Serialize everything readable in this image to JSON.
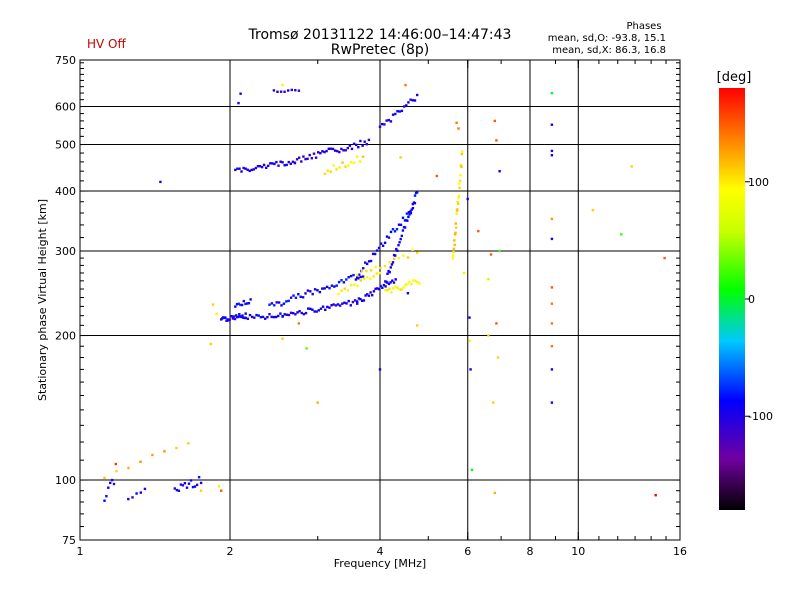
{
  "header": {
    "title": "Tromsø 20131122 14:46:00–14:47:43",
    "subtitle": "RwPretec (8p)",
    "status": "HV Off",
    "status_color": "#cc0000",
    "stats_title": "Phases",
    "stats_line1": "mean, sd,O: -93.8, 15.1",
    "stats_line2": "mean, sd,X: 86.3, 16.8"
  },
  "colorbar": {
    "label": "[deg]",
    "range": [
      -180,
      180
    ],
    "ticks": [
      "100",
      "0",
      "-100"
    ],
    "tick_values": [
      100,
      0,
      -100
    ]
  },
  "chart_data": {
    "type": "scatter",
    "xlabel": "Frequency [MHz]",
    "ylabel": "Stationary phase Virtual Height [km]",
    "xscale": "log",
    "yscale": "log",
    "xlim": [
      1,
      16
    ],
    "ylim": [
      75,
      750
    ],
    "xticks": [
      "1",
      "2",
      "4",
      "6",
      "8",
      "10",
      "16"
    ],
    "xtick_values": [
      1,
      2,
      4,
      6,
      8,
      10,
      16
    ],
    "yticks": [
      "750",
      "600",
      "500",
      "400",
      "300",
      "200",
      "100",
      "75"
    ],
    "ytick_values": [
      750,
      600,
      500,
      400,
      300,
      200,
      100,
      75
    ],
    "x_gridlines": [
      2,
      4,
      6,
      8,
      10
    ],
    "y_gridlines": [
      600,
      500,
      400,
      300,
      200,
      100
    ],
    "grid": true,
    "color_encoding": "phase in degrees",
    "traces": [
      {
        "x0": 1.92,
        "x1": 2.15,
        "y0": 216,
        "y1": 220,
        "n": 24,
        "phase": -95,
        "jitter": 0.012
      },
      {
        "x0": 2.15,
        "x1": 2.55,
        "y0": 218,
        "y1": 220,
        "n": 18,
        "phase": -92,
        "jitter": 0.012
      },
      {
        "x0": 2.55,
        "x1": 3.6,
        "y0": 220,
        "y1": 235,
        "n": 36,
        "phase": -98,
        "jitter": 0.012
      },
      {
        "x0": 3.6,
        "x1": 4.3,
        "y0": 235,
        "y1": 262,
        "n": 24,
        "phase": -95,
        "jitter": 0.012
      },
      {
        "x0": 4.1,
        "x1": 4.75,
        "y0": 258,
        "y1": 400,
        "n": 30,
        "phase": -92,
        "jitter": 0.015
      },
      {
        "x0": 2.05,
        "x1": 2.2,
        "y0": 232,
        "y1": 236,
        "n": 10,
        "phase": -88,
        "jitter": 0.012
      },
      {
        "x0": 2.4,
        "x1": 3.7,
        "y0": 230,
        "y1": 268,
        "n": 40,
        "phase": -90,
        "jitter": 0.015
      },
      {
        "x0": 3.6,
        "x1": 4.7,
        "y0": 268,
        "y1": 372,
        "n": 30,
        "phase": -92,
        "jitter": 0.015
      },
      {
        "x0": 3.3,
        "x1": 4.0,
        "y0": 246,
        "y1": 268,
        "n": 14,
        "phase": 95,
        "jitter": 0.015
      },
      {
        "x0": 4.1,
        "x1": 4.8,
        "y0": 245,
        "y1": 260,
        "n": 18,
        "phase": 95,
        "jitter": 0.015
      },
      {
        "x0": 3.6,
        "x1": 4.75,
        "y0": 268,
        "y1": 300,
        "n": 14,
        "phase": 100,
        "jitter": 0.015
      },
      {
        "x0": 5.6,
        "x1": 5.85,
        "y0": 285,
        "y1": 480,
        "n": 26,
        "phase": 105,
        "jitter": 0.025
      },
      {
        "x0": 2.05,
        "x1": 2.7,
        "y0": 440,
        "y1": 462,
        "n": 30,
        "phase": -95,
        "jitter": 0.012
      },
      {
        "x0": 2.7,
        "x1": 3.8,
        "y0": 462,
        "y1": 508,
        "n": 36,
        "phase": -100,
        "jitter": 0.015
      },
      {
        "x0": 3.1,
        "x1": 3.7,
        "y0": 440,
        "y1": 470,
        "n": 14,
        "phase": 100,
        "jitter": 0.015
      },
      {
        "x0": 4.0,
        "x1": 4.75,
        "y0": 540,
        "y1": 630,
        "n": 18,
        "phase": -95,
        "jitter": 0.012
      },
      {
        "x0": 2.45,
        "x1": 2.75,
        "y0": 645,
        "y1": 650,
        "n": 8,
        "phase": -100,
        "jitter": 0.006
      },
      {
        "x0": 1.12,
        "x1": 1.17,
        "y0": 92,
        "y1": 100,
        "n": 6,
        "phase": -95,
        "jitter": 0.02
      },
      {
        "x0": 1.25,
        "x1": 1.35,
        "y0": 92,
        "y1": 95,
        "n": 5,
        "phase": -95,
        "jitter": 0.01
      },
      {
        "x0": 1.55,
        "x1": 1.75,
        "y0": 95,
        "y1": 100,
        "n": 14,
        "phase": -95,
        "jitter": 0.02
      },
      {
        "x0": 1.12,
        "x1": 1.65,
        "y0": 102,
        "y1": 120,
        "n": 8,
        "phase": 120,
        "jitter": 0.01
      }
    ],
    "points": [
      [
        1.45,
        418,
        -100
      ],
      [
        2.08,
        610,
        -100
      ],
      [
        2.1,
        638,
        -90
      ],
      [
        2.55,
        665,
        100
      ],
      [
        1.85,
        232,
        110
      ],
      [
        1.88,
        222,
        100
      ],
      [
        1.83,
        192,
        110
      ],
      [
        2.55,
        197,
        110
      ],
      [
        2.75,
        212,
        140
      ],
      [
        2.85,
        188,
        30
      ],
      [
        3.0,
        145,
        120
      ],
      [
        4.0,
        170,
        -100
      ],
      [
        4.75,
        210,
        110
      ],
      [
        4.4,
        470,
        110
      ],
      [
        4.55,
        245,
        -90
      ],
      [
        4.5,
        665,
        140
      ],
      [
        5.2,
        430,
        150
      ],
      [
        5.7,
        555,
        140
      ],
      [
        5.75,
        540,
        140
      ],
      [
        5.9,
        270,
        100
      ],
      [
        6.0,
        385,
        -95
      ],
      [
        6.05,
        195,
        100
      ],
      [
        6.05,
        218,
        -90
      ],
      [
        6.08,
        170,
        -100
      ],
      [
        6.12,
        105,
        0
      ],
      [
        6.3,
        330,
        150
      ],
      [
        6.6,
        262,
        60
      ],
      [
        6.68,
        295,
        150
      ],
      [
        6.8,
        560,
        150
      ],
      [
        6.85,
        510,
        150
      ],
      [
        6.85,
        212,
        150
      ],
      [
        6.95,
        440,
        -100
      ],
      [
        6.95,
        300,
        20
      ],
      [
        6.6,
        200,
        110
      ],
      [
        6.9,
        180,
        110
      ],
      [
        6.75,
        145,
        110
      ],
      [
        6.8,
        94,
        120
      ],
      [
        8.85,
        640,
        0
      ],
      [
        8.85,
        550,
        -100
      ],
      [
        8.85,
        485,
        -100
      ],
      [
        8.85,
        475,
        -100
      ],
      [
        8.85,
        350,
        130
      ],
      [
        8.85,
        318,
        -100
      ],
      [
        8.85,
        252,
        150
      ],
      [
        8.85,
        233,
        140
      ],
      [
        8.85,
        212,
        140
      ],
      [
        8.85,
        190,
        140
      ],
      [
        8.85,
        170,
        -100
      ],
      [
        8.85,
        145,
        -100
      ],
      [
        10.7,
        365,
        110
      ],
      [
        12.2,
        325,
        20
      ],
      [
        12.8,
        450,
        110
      ],
      [
        14.3,
        93,
        180
      ],
      [
        14.9,
        290,
        150
      ],
      [
        1.9,
        97,
        100
      ],
      [
        1.92,
        95,
        150
      ],
      [
        1.18,
        108,
        160
      ],
      [
        1.75,
        95,
        110
      ]
    ]
  }
}
